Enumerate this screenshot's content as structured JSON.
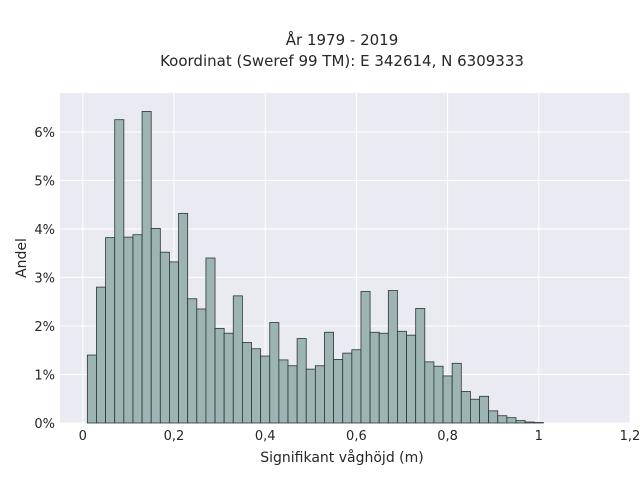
{
  "chart_data": {
    "type": "bar",
    "title_line1": "År 1979 - 2019",
    "title_line2": "Koordinat (Sweref 99 TM): E 342614, N 6309333",
    "xlabel": "Signifikant våghöjd (m)",
    "ylabel": "Andel",
    "xlim": [
      -0.05,
      1.2
    ],
    "ylim": [
      0,
      6.8
    ],
    "grid": true,
    "bin_width": 0.02,
    "bin_start": 0.01,
    "x_ticks": [
      {
        "value": 0,
        "label": "0"
      },
      {
        "value": 0.2,
        "label": "0,2"
      },
      {
        "value": 0.4,
        "label": "0,4"
      },
      {
        "value": 0.6,
        "label": "0,6"
      },
      {
        "value": 0.8,
        "label": "0,8"
      },
      {
        "value": 1.0,
        "label": "1"
      },
      {
        "value": 1.2,
        "label": "1,2"
      }
    ],
    "y_ticks": [
      {
        "value": 0,
        "label": "0%"
      },
      {
        "value": 1,
        "label": "1%"
      },
      {
        "value": 2,
        "label": "2%"
      },
      {
        "value": 3,
        "label": "3%"
      },
      {
        "value": 4,
        "label": "4%"
      },
      {
        "value": 5,
        "label": "5%"
      },
      {
        "value": 6,
        "label": "6%"
      }
    ],
    "values": [
      1.4,
      2.8,
      3.82,
      6.25,
      3.83,
      3.88,
      6.42,
      4.01,
      3.52,
      3.32,
      4.32,
      2.56,
      2.35,
      3.4,
      1.95,
      1.85,
      2.62,
      1.66,
      1.53,
      1.38,
      2.07,
      1.3,
      1.18,
      1.74,
      1.11,
      1.18,
      1.87,
      1.31,
      1.44,
      1.51,
      2.71,
      1.87,
      1.85,
      2.73,
      1.89,
      1.81,
      2.36,
      1.26,
      1.17,
      0.97,
      1.23,
      0.65,
      0.49,
      0.55,
      0.25,
      0.15,
      0.11,
      0.05,
      0.02,
      0.01
    ]
  },
  "colors": {
    "plot_background": "#eaeaf2",
    "bar_fill": "#9db4b4",
    "bar_edge": "#2b3535",
    "text": "#262626"
  }
}
